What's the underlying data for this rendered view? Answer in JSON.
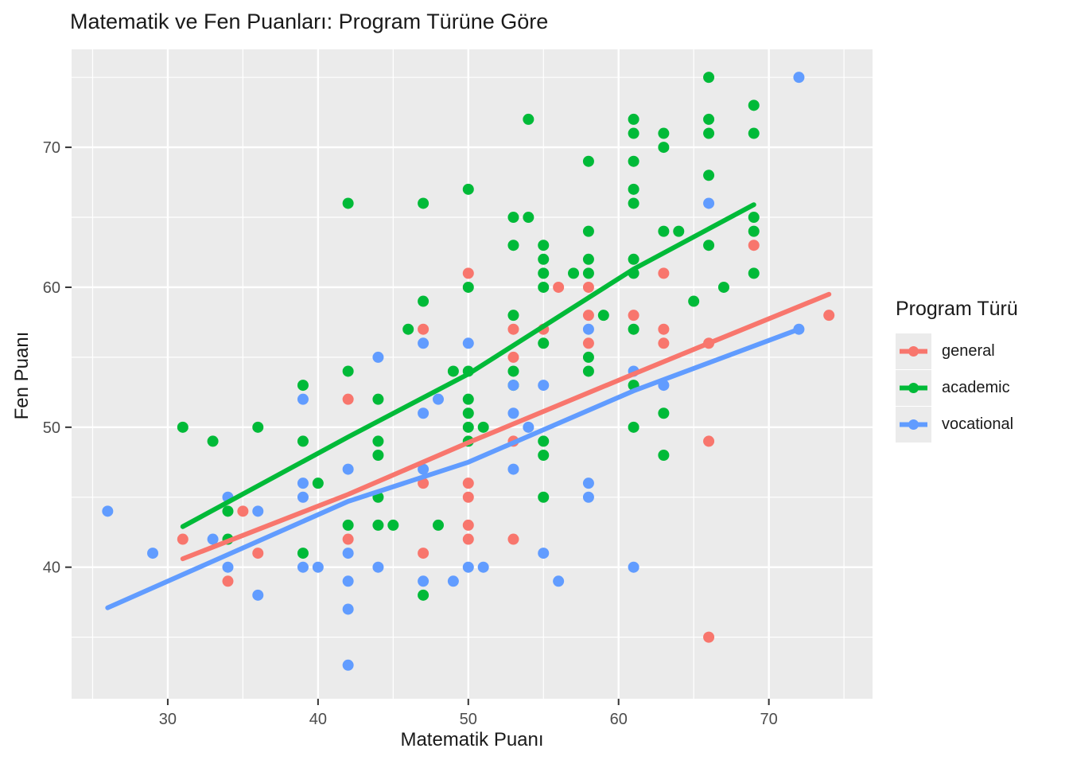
{
  "title": "Matematik ve Fen Puanları: Program Türüne Göre",
  "x_axis": {
    "label": "Matematik Puanı",
    "ticks": [
      30,
      40,
      50,
      60,
      70
    ],
    "minor_ticks": [
      25,
      35,
      45,
      55,
      65,
      75
    ],
    "domain": [
      23.6,
      76.9
    ]
  },
  "y_axis": {
    "label": "Fen Puanı",
    "ticks": [
      40,
      50,
      60,
      70
    ],
    "minor_ticks": [
      35,
      45,
      55,
      65,
      75
    ],
    "domain": [
      30.6,
      77.0
    ]
  },
  "legend": {
    "title": "Program Türü",
    "items": [
      {
        "label": "general",
        "color": "#F8766D"
      },
      {
        "label": "academic",
        "color": "#00BA38"
      },
      {
        "label": "vocational",
        "color": "#619CFF"
      }
    ]
  },
  "colors": {
    "panel_background": "#EBEBEB",
    "gridline": "#FFFFFF",
    "tick_mark": "#333333",
    "tick_label": "#4D4D4D",
    "general": "#F8766D",
    "academic": "#00BA38",
    "vocational": "#619CFF"
  },
  "chart_data": {
    "type": "scatter",
    "title": "Matematik ve Fen Puanları: Program Türüne Göre",
    "xlabel": "Matematik Puanı",
    "ylabel": "Fen Puanı",
    "xlim": [
      23.6,
      76.9
    ],
    "ylim": [
      30.6,
      77.0
    ],
    "grid": true,
    "legend_position": "right",
    "legend_title": "Program Türü",
    "series": [
      {
        "name": "general",
        "color": "#F8766D",
        "points": [
          [
            69,
            63
          ],
          [
            63,
            61
          ],
          [
            50,
            61
          ],
          [
            56,
            60
          ],
          [
            58,
            60
          ],
          [
            58,
            58
          ],
          [
            61,
            58
          ],
          [
            74,
            58
          ],
          [
            47,
            57
          ],
          [
            53,
            57
          ],
          [
            55,
            57
          ],
          [
            63,
            57
          ],
          [
            58,
            56
          ],
          [
            63,
            56
          ],
          [
            66,
            56
          ],
          [
            53,
            55
          ],
          [
            42,
            52
          ],
          [
            53,
            49
          ],
          [
            66,
            49
          ],
          [
            47,
            46
          ],
          [
            50,
            46
          ],
          [
            50,
            45
          ],
          [
            35,
            44
          ],
          [
            50,
            43
          ],
          [
            31,
            42
          ],
          [
            42,
            42
          ],
          [
            50,
            42
          ],
          [
            53,
            42
          ],
          [
            36,
            41
          ],
          [
            47,
            41
          ],
          [
            34,
            39
          ],
          [
            66,
            35
          ]
        ],
        "trend_line": [
          [
            31,
            40.6
          ],
          [
            42,
            45.2
          ],
          [
            50,
            48.9
          ],
          [
            61,
            53.8
          ],
          [
            66,
            56.0
          ],
          [
            74,
            59.5
          ]
        ]
      },
      {
        "name": "academic",
        "color": "#00BA38",
        "points": [
          [
            66,
            75
          ],
          [
            69,
            73
          ],
          [
            54,
            72
          ],
          [
            61,
            72
          ],
          [
            66,
            72
          ],
          [
            61,
            71
          ],
          [
            63,
            71
          ],
          [
            66,
            71
          ],
          [
            69,
            71
          ],
          [
            63,
            70
          ],
          [
            58,
            69
          ],
          [
            61,
            69
          ],
          [
            66,
            68
          ],
          [
            50,
            67
          ],
          [
            61,
            67
          ],
          [
            42,
            66
          ],
          [
            47,
            66
          ],
          [
            61,
            66
          ],
          [
            53,
            65
          ],
          [
            54,
            65
          ],
          [
            69,
            65
          ],
          [
            58,
            64
          ],
          [
            63,
            64
          ],
          [
            64,
            64
          ],
          [
            69,
            64
          ],
          [
            53,
            63
          ],
          [
            55,
            63
          ],
          [
            66,
            63
          ],
          [
            55,
            62
          ],
          [
            58,
            62
          ],
          [
            61,
            62
          ],
          [
            55,
            61
          ],
          [
            57,
            61
          ],
          [
            58,
            61
          ],
          [
            61,
            61
          ],
          [
            69,
            61
          ],
          [
            50,
            60
          ],
          [
            55,
            60
          ],
          [
            67,
            60
          ],
          [
            47,
            59
          ],
          [
            65,
            59
          ],
          [
            53,
            58
          ],
          [
            59,
            58
          ],
          [
            46,
            57
          ],
          [
            61,
            57
          ],
          [
            55,
            56
          ],
          [
            58,
            55
          ],
          [
            42,
            54
          ],
          [
            49,
            54
          ],
          [
            50,
            54
          ],
          [
            53,
            54
          ],
          [
            58,
            54
          ],
          [
            39,
            53
          ],
          [
            53,
            53
          ],
          [
            61,
            53
          ],
          [
            44,
            52
          ],
          [
            50,
            52
          ],
          [
            50,
            51
          ],
          [
            63,
            51
          ],
          [
            31,
            50
          ],
          [
            36,
            50
          ],
          [
            50,
            50
          ],
          [
            51,
            50
          ],
          [
            61,
            50
          ],
          [
            33,
            49
          ],
          [
            39,
            49
          ],
          [
            44,
            49
          ],
          [
            50,
            49
          ],
          [
            55,
            49
          ],
          [
            44,
            48
          ],
          [
            55,
            48
          ],
          [
            63,
            48
          ],
          [
            40,
            46
          ],
          [
            44,
            45
          ],
          [
            55,
            45
          ],
          [
            34,
            44
          ],
          [
            42,
            43
          ],
          [
            44,
            43
          ],
          [
            45,
            43
          ],
          [
            48,
            43
          ],
          [
            34,
            42
          ],
          [
            39,
            41
          ],
          [
            47,
            38
          ]
        ],
        "trend_line": [
          [
            31,
            42.9
          ],
          [
            42,
            49.3
          ],
          [
            50,
            53.8
          ],
          [
            61,
            61.3
          ],
          [
            69,
            65.9
          ]
        ]
      },
      {
        "name": "vocational",
        "color": "#619CFF",
        "points": [
          [
            72,
            75
          ],
          [
            66,
            66
          ],
          [
            58,
            57
          ],
          [
            72,
            57
          ],
          [
            47,
            56
          ],
          [
            50,
            56
          ],
          [
            44,
            55
          ],
          [
            61,
            54
          ],
          [
            53,
            53
          ],
          [
            55,
            53
          ],
          [
            63,
            53
          ],
          [
            39,
            52
          ],
          [
            48,
            52
          ],
          [
            47,
            51
          ],
          [
            53,
            51
          ],
          [
            54,
            50
          ],
          [
            42,
            47
          ],
          [
            47,
            47
          ],
          [
            53,
            47
          ],
          [
            39,
            46
          ],
          [
            58,
            46
          ],
          [
            34,
            45
          ],
          [
            39,
            45
          ],
          [
            58,
            45
          ],
          [
            26,
            44
          ],
          [
            36,
            44
          ],
          [
            33,
            42
          ],
          [
            29,
            41
          ],
          [
            42,
            41
          ],
          [
            55,
            41
          ],
          [
            34,
            40
          ],
          [
            39,
            40
          ],
          [
            40,
            40
          ],
          [
            44,
            40
          ],
          [
            50,
            40
          ],
          [
            51,
            40
          ],
          [
            61,
            40
          ],
          [
            42,
            39
          ],
          [
            47,
            39
          ],
          [
            49,
            39
          ],
          [
            56,
            39
          ],
          [
            36,
            38
          ],
          [
            42,
            37
          ],
          [
            42,
            33
          ]
        ],
        "trend_line": [
          [
            26,
            37.1
          ],
          [
            42,
            44.7
          ],
          [
            50,
            47.5
          ],
          [
            61,
            52.6
          ],
          [
            72,
            57.0
          ]
        ]
      }
    ]
  }
}
